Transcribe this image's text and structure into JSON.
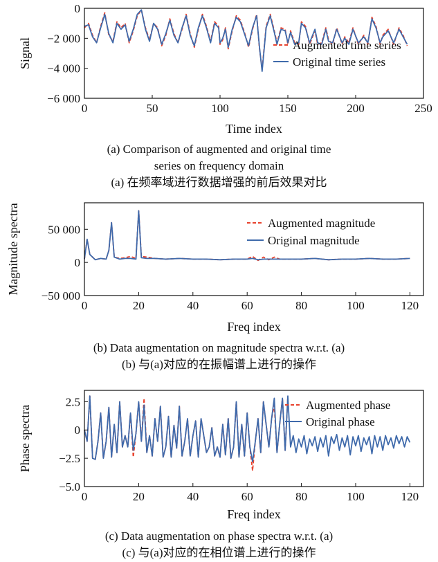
{
  "colors": {
    "augmented": "#e8412c",
    "original": "#3f6aab",
    "axis": "#111111"
  },
  "captions": {
    "a_en_1": "(a) Comparison of augmented and original time",
    "a_en_2": "series on frequency domain",
    "a_zh": "(a) 在频率域进行数据增强的前后效果对比",
    "b_en": "(b) Data augmentation on magnitude spectra w.r.t. (a)",
    "b_zh": "(b) 与(a)对应的在振幅谱上进行的操作",
    "c_en": "(c) Data augmentation on phase spectra w.r.t. (a)",
    "c_zh": "(c) 与(a)对应的在相位谱上进行的操作"
  },
  "chart_data": [
    {
      "type": "line",
      "xlabel": "Time index",
      "ylabel": "Signal",
      "xlim": [
        0,
        250
      ],
      "ylim": [
        -6000,
        0
      ],
      "xticks": [
        0,
        50,
        100,
        150,
        200,
        250
      ],
      "xtick_labels": [
        "0",
        "50",
        "100",
        "150",
        "200",
        "250"
      ],
      "yticks": [
        0,
        -2000,
        -4000,
        -6000
      ],
      "ytick_labels": [
        "0",
        "−2 000",
        "−4 000",
        "−6 000"
      ],
      "legend": "center-right",
      "series": [
        {
          "name": "Augmented time series",
          "style": "dashed",
          "x": [
            0,
            3,
            6,
            9,
            12,
            15,
            18,
            21,
            24,
            27,
            30,
            33,
            36,
            39,
            42,
            45,
            48,
            51,
            54,
            57,
            60,
            63,
            66,
            69,
            72,
            75,
            78,
            81,
            84,
            87,
            90,
            93,
            96,
            99,
            100,
            102,
            104,
            106,
            109,
            112,
            115,
            118,
            121,
            124,
            127,
            129,
            131,
            134,
            137,
            140,
            142,
            145,
            148,
            150,
            152,
            155,
            158,
            160,
            163,
            166,
            170,
            172,
            175,
            178,
            180,
            183,
            186,
            190,
            192,
            195,
            198,
            202,
            206,
            209,
            212,
            215,
            218,
            220,
            224,
            228,
            232,
            235,
            238
          ],
          "y": [
            -1300,
            -1000,
            -1800,
            -2300,
            -1200,
            -300,
            -1800,
            -2200,
            -900,
            -1300,
            -1000,
            -2300,
            -1500,
            -500,
            -100,
            -1300,
            -2100,
            -1000,
            -1300,
            -2500,
            -1800,
            -700,
            -1700,
            -2300,
            -1400,
            -400,
            -1700,
            -2600,
            -1400,
            -400,
            -1200,
            -2200,
            -900,
            -1200,
            -2400,
            -2100,
            -1300,
            -2700,
            -1500,
            -500,
            -800,
            -1600,
            -2600,
            -1400,
            -400,
            -2600,
            -4100,
            -1200,
            -400,
            -1500,
            -2300,
            -1300,
            -1400,
            -2400,
            -1500,
            -2300,
            -2400,
            -900,
            -1200,
            -2400,
            -1500,
            -2400,
            -2300,
            -1300,
            -2100,
            -2400,
            -1300,
            -2400,
            -1900,
            -2300,
            -1300,
            -2400,
            -1800,
            -2400,
            -600,
            -1200,
            -2400,
            -1800,
            -1400,
            -2400,
            -1300,
            -1800,
            -2500
          ]
        },
        {
          "name": "Original time series",
          "style": "solid",
          "x": [
            0,
            3,
            6,
            9,
            12,
            15,
            18,
            21,
            24,
            27,
            30,
            33,
            36,
            39,
            42,
            45,
            48,
            51,
            54,
            57,
            60,
            63,
            66,
            69,
            72,
            75,
            78,
            81,
            84,
            87,
            90,
            93,
            96,
            99,
            100,
            102,
            104,
            106,
            109,
            112,
            115,
            118,
            121,
            124,
            127,
            129,
            131,
            134,
            137,
            140,
            142,
            145,
            148,
            150,
            152,
            155,
            158,
            160,
            163,
            166,
            170,
            172,
            175,
            178,
            180,
            183,
            186,
            190,
            192,
            195,
            198,
            202,
            206,
            209,
            212,
            215,
            218,
            220,
            224,
            228,
            232,
            235,
            238
          ],
          "y": [
            -1200,
            -1100,
            -1900,
            -2300,
            -1300,
            -400,
            -1700,
            -2300,
            -1000,
            -1400,
            -1100,
            -2200,
            -1400,
            -400,
            -100,
            -1400,
            -2200,
            -1000,
            -1400,
            -2400,
            -1700,
            -800,
            -1800,
            -2300,
            -1300,
            -500,
            -1800,
            -2500,
            -1300,
            -500,
            -1300,
            -2300,
            -1000,
            -1300,
            -2300,
            -2000,
            -1400,
            -2600,
            -1400,
            -600,
            -900,
            -1700,
            -2500,
            -1300,
            -500,
            -2500,
            -4200,
            -1300,
            -500,
            -1600,
            -2400,
            -1400,
            -1500,
            -2300,
            -1600,
            -2400,
            -2300,
            -1000,
            -1300,
            -2300,
            -1400,
            -2300,
            -2400,
            -1400,
            -2200,
            -2300,
            -1400,
            -2300,
            -2000,
            -2400,
            -1400,
            -2300,
            -1900,
            -2300,
            -700,
            -1300,
            -2300,
            -1900,
            -1500,
            -2300,
            -1400,
            -1900,
            -2400
          ]
        }
      ]
    },
    {
      "type": "line",
      "xlabel": "Freq index",
      "ylabel": "Magnitude spectra",
      "xlim": [
        0,
        125
      ],
      "ylim": [
        -50000,
        90000
      ],
      "xticks": [
        0,
        20,
        40,
        60,
        80,
        100,
        120
      ],
      "xtick_labels": [
        "0",
        "20",
        "40",
        "60",
        "80",
        "100",
        "120"
      ],
      "yticks": [
        -50000,
        0,
        50000
      ],
      "ytick_labels": [
        "−50 000",
        "0",
        "50 000"
      ],
      "legend": "top-right",
      "series": [
        {
          "name": "Augmented magnitude",
          "style": "dashed",
          "x": [
            0,
            1,
            2,
            4,
            6,
            8,
            9,
            10,
            11,
            13,
            15,
            17,
            19,
            20,
            21,
            23,
            26,
            30,
            35,
            40,
            45,
            50,
            55,
            60,
            62,
            64,
            66,
            68,
            70,
            72,
            75,
            80,
            85,
            90,
            95,
            100,
            105,
            110,
            115,
            120
          ],
          "y": [
            5000,
            35000,
            12000,
            4000,
            6000,
            5000,
            18000,
            60000,
            8000,
            6000,
            7000,
            9000,
            6000,
            78000,
            9000,
            8000,
            6000,
            5000,
            6000,
            5000,
            5000,
            4000,
            5000,
            5000,
            9000,
            3000,
            8000,
            4000,
            8000,
            5000,
            5000,
            5000,
            6000,
            4000,
            5000,
            5000,
            6000,
            5000,
            5000,
            6000
          ]
        },
        {
          "name": "Original magnitude",
          "style": "solid",
          "x": [
            0,
            1,
            2,
            4,
            6,
            8,
            9,
            10,
            11,
            13,
            15,
            17,
            19,
            20,
            21,
            23,
            26,
            30,
            35,
            40,
            45,
            50,
            55,
            60,
            62,
            64,
            66,
            68,
            70,
            72,
            75,
            80,
            85,
            90,
            95,
            100,
            105,
            110,
            115,
            120
          ],
          "y": [
            5000,
            35000,
            12000,
            4000,
            6000,
            5000,
            18000,
            60000,
            8000,
            5000,
            6000,
            6000,
            5000,
            78000,
            7000,
            6000,
            6000,
            5000,
            6000,
            5000,
            5000,
            4000,
            5000,
            5000,
            6000,
            4000,
            5000,
            5000,
            5000,
            5000,
            5000,
            5000,
            6000,
            4000,
            5000,
            5000,
            6000,
            5000,
            5000,
            6000
          ]
        }
      ]
    },
    {
      "type": "line",
      "xlabel": "Freq index",
      "ylabel": "Phase spectra",
      "xlim": [
        0,
        125
      ],
      "ylim": [
        -5.0,
        3.5
      ],
      "xticks": [
        0,
        20,
        40,
        60,
        80,
        100,
        120
      ],
      "xtick_labels": [
        "0",
        "20",
        "40",
        "60",
        "80",
        "100",
        "120"
      ],
      "yticks": [
        2.5,
        0,
        -2.5,
        -5.0
      ],
      "ytick_labels": [
        "2.5",
        "0",
        "−2.5",
        "−5.0"
      ],
      "legend": "top-right",
      "series": [
        {
          "name": "Augmented phase",
          "style": "dashed",
          "x": [
            0,
            1,
            2,
            3,
            4,
            5,
            6,
            7,
            8,
            9,
            10,
            11,
            12,
            13,
            14,
            15,
            16,
            17,
            18,
            19,
            20,
            21,
            22,
            23,
            24,
            25,
            26,
            27,
            28,
            29,
            30,
            31,
            32,
            33,
            34,
            35,
            36,
            37,
            38,
            39,
            40,
            41,
            42,
            43,
            44,
            45,
            46,
            47,
            48,
            49,
            50,
            51,
            52,
            53,
            54,
            55,
            56,
            57,
            58,
            59,
            60,
            61,
            62,
            63,
            64,
            65,
            66,
            67,
            68,
            69,
            70,
            71,
            72,
            73,
            74,
            75
          ],
          "y": [
            0,
            -1,
            3,
            -2.5,
            -2.6,
            -1,
            1.5,
            -2.5,
            -1,
            2,
            -2.4,
            0.5,
            -2,
            2.5,
            -1.5,
            -0.5,
            -1.5,
            1.5,
            -2.4,
            -0.3,
            2.5,
            -1,
            2.8,
            -2,
            -0.5,
            -2.3,
            1,
            -1,
            2.1,
            -2.4,
            -1.5,
            1.2,
            -2.4,
            0.4,
            -1.6,
            2.1,
            -2.3,
            -1,
            1,
            -2.3,
            -0.5,
            0.8,
            -2.4,
            1,
            -0.5,
            -2,
            -1.5,
            0.2,
            -2.3,
            -1.5,
            -2.4,
            0.5,
            -2.2,
            1,
            -2.5,
            -1.5,
            2.5,
            -2.4,
            0.5,
            -2.3,
            1.5,
            -1.5,
            -3.6,
            -1,
            1,
            -2,
            2.5,
            0.5,
            -1.5,
            1,
            2.2,
            -2,
            0.5,
            2.8,
            -1.8,
            3
          ]
        },
        {
          "name": "Original phase",
          "style": "solid",
          "x": [
            0,
            1,
            2,
            3,
            4,
            5,
            6,
            7,
            8,
            9,
            10,
            11,
            12,
            13,
            14,
            15,
            16,
            17,
            18,
            19,
            20,
            21,
            22,
            23,
            24,
            25,
            26,
            27,
            28,
            29,
            30,
            31,
            32,
            33,
            34,
            35,
            36,
            37,
            38,
            39,
            40,
            41,
            42,
            43,
            44,
            45,
            46,
            47,
            48,
            49,
            50,
            51,
            52,
            53,
            54,
            55,
            56,
            57,
            58,
            59,
            60,
            61,
            62,
            63,
            64,
            65,
            66,
            67,
            68,
            69,
            70,
            71,
            72,
            73,
            74,
            75,
            76,
            77,
            78,
            79,
            80,
            81,
            82,
            83,
            84,
            85,
            86,
            87,
            88,
            89,
            90,
            91,
            92,
            93,
            94,
            95,
            96,
            97,
            98,
            99,
            100,
            101,
            102,
            103,
            104,
            105,
            106,
            107,
            108,
            109,
            110,
            111,
            112,
            113,
            114,
            115,
            116,
            117,
            118,
            119,
            120
          ],
          "y": [
            0,
            -1,
            3,
            -2.5,
            -2.6,
            -1,
            1.5,
            -2.5,
            -1,
            2,
            -2.4,
            0.5,
            -2,
            2.5,
            -1.5,
            -0.5,
            -1.5,
            1.5,
            -1.8,
            -0.3,
            2.5,
            -1,
            2.2,
            -2,
            -0.5,
            -2.3,
            1,
            -1,
            2.1,
            -2.4,
            -1.5,
            1.2,
            -2.4,
            0.4,
            -1.6,
            2.1,
            -2.3,
            -1,
            1,
            -2.3,
            -0.5,
            0.8,
            -2.4,
            1,
            -0.5,
            -2,
            -1.5,
            0.2,
            -2.3,
            -1.5,
            -2.4,
            0.5,
            -2.2,
            1,
            -2.5,
            -1.5,
            2.5,
            -2.4,
            0.5,
            -2.3,
            1.5,
            -1.5,
            -2.8,
            -1,
            1,
            -2,
            2.5,
            0.5,
            -1.5,
            1,
            2.8,
            -2,
            0.5,
            2.8,
            -1.8,
            3,
            -1.5,
            -0.5,
            -2,
            -0.8,
            -1.5,
            -0.5,
            -2.1,
            -0.8,
            -1.4,
            -0.6,
            -1.9,
            -0.7,
            -1.5,
            -0.5,
            -2.3,
            -0.6,
            -1.2,
            -0.4,
            -1.8,
            -0.7,
            -1.5,
            -0.5,
            -2.2,
            -0.6,
            -1.4,
            -0.5,
            -1.9,
            -0.7,
            -1.3,
            -0.6,
            -2.1,
            -0.5,
            -1.5,
            -0.6,
            -1.8,
            -0.5,
            -1.3,
            -0.7,
            -1.6,
            -0.5,
            -1.2,
            -0.6,
            -1.5,
            -0.6,
            -1.1
          ]
        }
      ]
    }
  ]
}
